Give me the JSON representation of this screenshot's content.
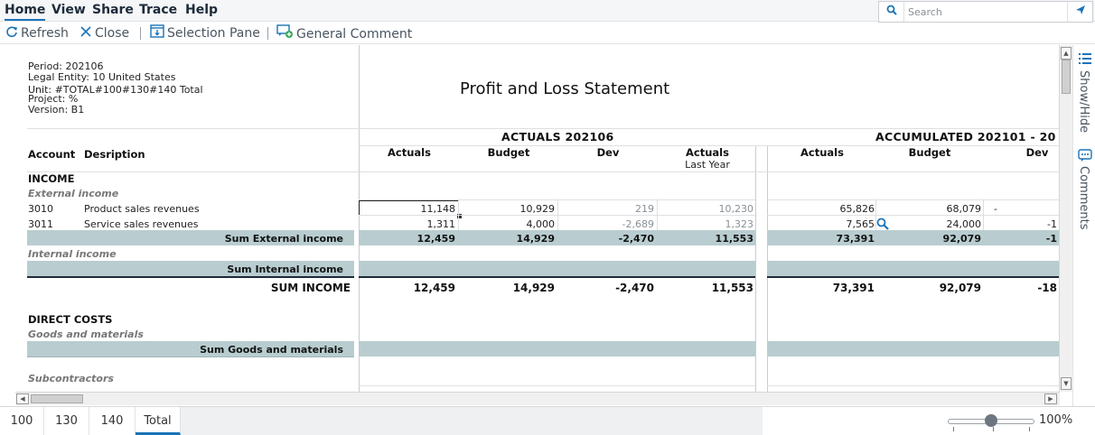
{
  "menu": {
    "items": [
      "Home",
      "View",
      "Share",
      "Trace",
      "Help"
    ],
    "search_placeholder": "Search"
  },
  "toolbar": {
    "refresh": "Refresh",
    "close": "Close",
    "selection_pane": "Selection Pane",
    "general_comment": "General Comment"
  },
  "report": {
    "meta": {
      "period": "Period: 202106",
      "legal_entity": "Legal Entity: 10 United States",
      "unit": "Unit: #TOTAL#100#130#140 Total",
      "project": "Project: %",
      "version": "Version: B1"
    },
    "title": "Profit and Loss Statement",
    "col_groups": {
      "actuals": "ACTUALS 202106",
      "accumulated": "ACCUMULATED 202101 - 20"
    },
    "headers": {
      "account": "Account",
      "description": "Desription",
      "g1": [
        "Actuals",
        "Budget",
        "Dev",
        "Actuals"
      ],
      "g1_sub": "Last Year",
      "g2": [
        "Actuals",
        "Budget",
        "Dev"
      ]
    },
    "sections": {
      "income": "INCOME",
      "external_income": "External income",
      "sum_external": "Sum External income",
      "internal_income": "Internal income",
      "sum_internal": "Sum Internal income",
      "sum_income": "SUM INCOME",
      "direct_costs": "DIRECT COSTS",
      "goods_materials": "Goods and materials",
      "sum_goods": "Sum Goods and materials",
      "subcontractors": "Subcontractors"
    },
    "rows": {
      "r3010": {
        "account": "3010",
        "desc": "Product sales revenues",
        "values": [
          "11,148",
          "10,929",
          "219",
          "10,230",
          "65,826",
          "68,079",
          "-"
        ]
      },
      "r3011": {
        "account": "3011",
        "desc": "Service sales revenues",
        "values": [
          "1,311",
          "4,000",
          "-2,689",
          "1,323",
          "7,565",
          "24,000",
          "-1"
        ]
      },
      "sum_external": [
        "12,459",
        "14,929",
        "-2,470",
        "11,553",
        "73,391",
        "92,079",
        "-1"
      ],
      "sum_income": [
        "12,459",
        "14,929",
        "-2,470",
        "11,553",
        "73,391",
        "92,079",
        "-18"
      ]
    }
  },
  "side_panel": {
    "show_hide": "Show/Hide",
    "comments": "Comments"
  },
  "tabs": [
    "100",
    "130",
    "140",
    "Total"
  ],
  "zoom": {
    "label": "100%",
    "level": 0.5
  }
}
